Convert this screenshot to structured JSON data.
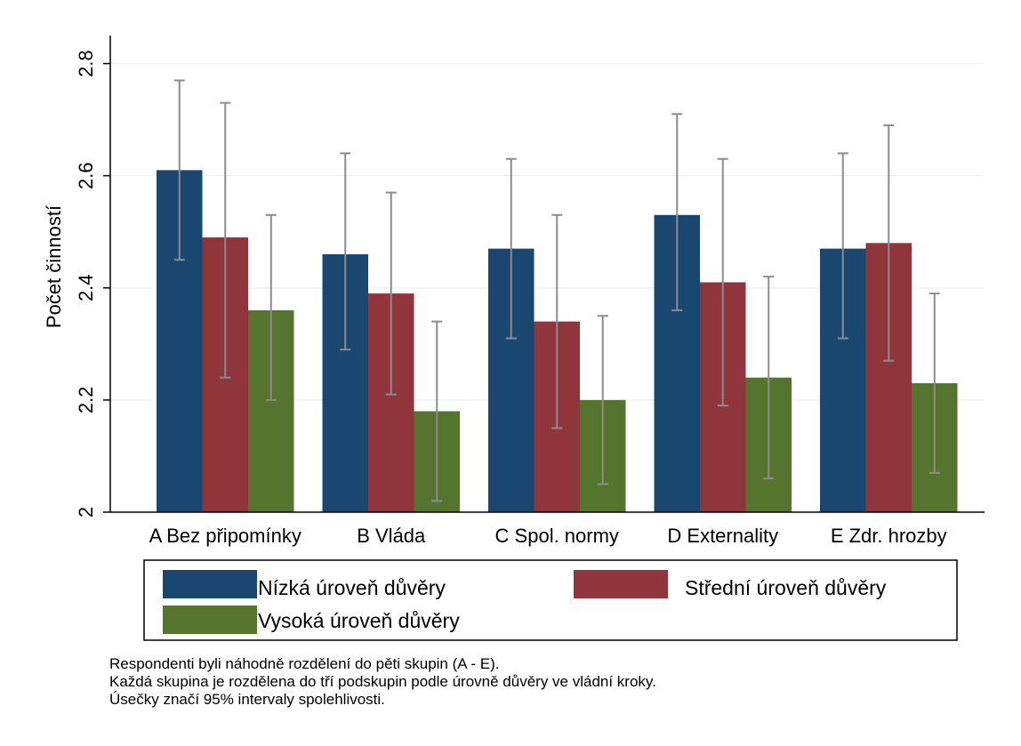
{
  "chart_data": {
    "type": "bar",
    "xlabel": "",
    "ylabel": "Počet činností",
    "ylim": [
      2,
      2.85
    ],
    "yticks": [
      2,
      2.2,
      2.4,
      2.6,
      2.8
    ],
    "ytick_labels": [
      "2",
      "2.2",
      "2.4",
      "2.6",
      "2.8"
    ],
    "grid": true,
    "legend_position": "bottom",
    "categories": [
      "A Bez připomínky",
      "B Vláda",
      "C Spol. normy",
      "D Externality",
      "E Zdr. hrozby"
    ],
    "series": [
      {
        "name": "Nízká úroveň důvěry",
        "color": "#1a476f",
        "values": [
          2.61,
          2.46,
          2.47,
          2.53,
          2.47
        ],
        "ci_low": [
          2.45,
          2.29,
          2.31,
          2.36,
          2.31
        ],
        "ci_high": [
          2.77,
          2.64,
          2.63,
          2.71,
          2.64
        ]
      },
      {
        "name": "Střední úroveň důvěry",
        "color": "#90353b",
        "values": [
          2.49,
          2.39,
          2.34,
          2.41,
          2.48
        ],
        "ci_low": [
          2.24,
          2.21,
          2.15,
          2.19,
          2.27
        ],
        "ci_high": [
          2.73,
          2.57,
          2.53,
          2.63,
          2.69
        ]
      },
      {
        "name": "Vysoká úroveň důvěry",
        "color": "#55752f",
        "values": [
          2.36,
          2.18,
          2.2,
          2.24,
          2.23
        ],
        "ci_low": [
          2.2,
          2.02,
          2.05,
          2.06,
          2.07
        ],
        "ci_high": [
          2.53,
          2.34,
          2.35,
          2.42,
          2.39
        ]
      }
    ],
    "errorbar_color": "#8c8c8c",
    "grid_color": "#eaf2f3",
    "notes": [
      "Respondenti byli náhodně rozdělení do pěti skupin (A - E).",
      "Každá skupina je rozdělena do tří podskupin podle úrovně důvěry ve vládní kroky.",
      "Úsečky značí 95% intervaly spolehlivosti."
    ]
  }
}
